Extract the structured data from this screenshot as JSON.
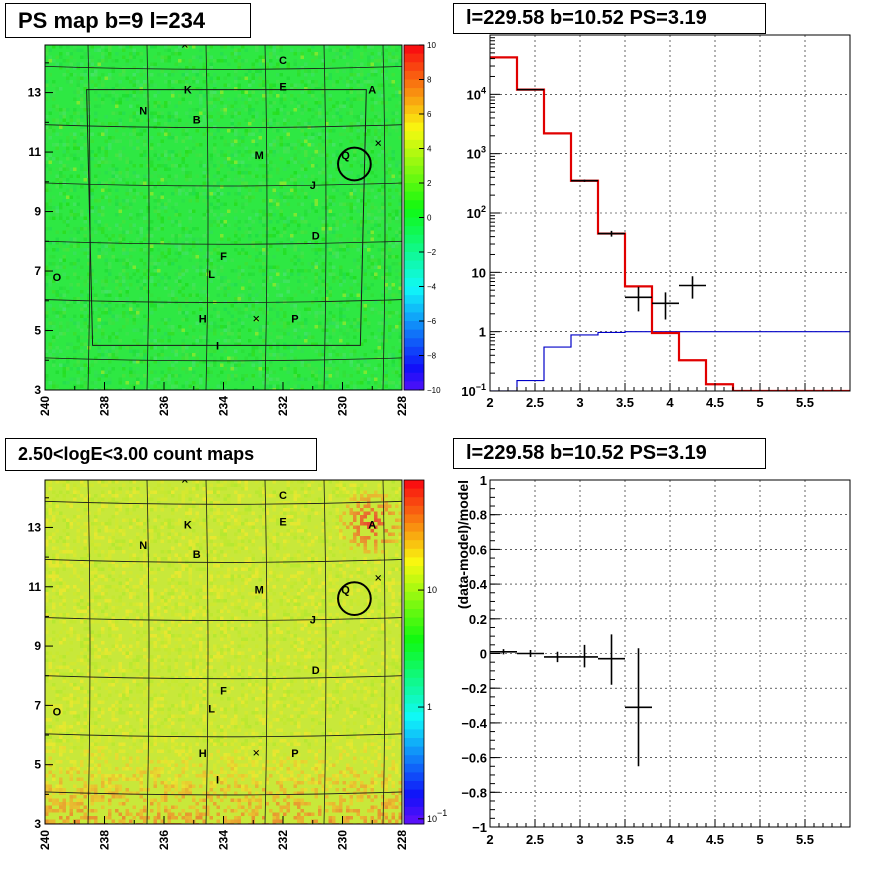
{
  "chart_data": [
    {
      "panel": "top-left",
      "type": "heatmap",
      "title": "PS map b=9 l=234",
      "xlim": [
        240,
        228
      ],
      "ylim": [
        3,
        14.6
      ],
      "x_ticks": [
        "240",
        "238",
        "236",
        "234",
        "232",
        "230",
        "228"
      ],
      "y_ticks": [
        "3",
        "5",
        "7",
        "9",
        "11",
        "13"
      ],
      "colorbar": {
        "scale": "linear",
        "range": [
          -10,
          10
        ],
        "ticks": [
          "10",
          "8",
          "6",
          "4",
          "2",
          "0",
          "−2",
          "−4",
          "−6",
          "−8",
          "−10"
        ]
      },
      "base_color": "#2ee843",
      "sources": [
        {
          "label": "C",
          "l": 232.0,
          "b": 14.1
        },
        {
          "label": "E",
          "l": 232.0,
          "b": 13.2
        },
        {
          "label": "A",
          "l": 229.0,
          "b": 13.1
        },
        {
          "label": "K",
          "l": 235.2,
          "b": 13.1
        },
        {
          "label": "N",
          "l": 236.7,
          "b": 12.4
        },
        {
          "label": "B",
          "l": 234.9,
          "b": 12.1
        },
        {
          "label": "M",
          "l": 232.8,
          "b": 10.9
        },
        {
          "label": "Q",
          "l": 229.9,
          "b": 10.9
        },
        {
          "label": "J",
          "l": 231.0,
          "b": 9.9
        },
        {
          "label": "D",
          "l": 230.9,
          "b": 8.2
        },
        {
          "label": "F",
          "l": 234.0,
          "b": 7.5
        },
        {
          "label": "O",
          "l": 239.6,
          "b": 6.8
        },
        {
          "label": "L",
          "l": 234.4,
          "b": 6.9
        },
        {
          "label": "H",
          "l": 234.7,
          "b": 5.4
        },
        {
          "label": "P",
          "l": 231.6,
          "b": 5.4
        },
        {
          "label": "I",
          "l": 234.2,
          "b": 4.5
        }
      ],
      "crosses": [
        {
          "l": 235.3,
          "b": 14.6
        },
        {
          "l": 228.8,
          "b": 11.3
        },
        {
          "l": 232.9,
          "b": 5.4
        }
      ],
      "circle": {
        "l": 229.6,
        "b": 10.6,
        "r_deg": 0.55
      },
      "hot_spot": null
    },
    {
      "panel": "top-right",
      "type": "line",
      "title": "l=229.58 b=10.52 PS=3.19",
      "xlim": [
        2,
        6
      ],
      "ylim": [
        0.1,
        100000
      ],
      "yscale": "log",
      "grid": true,
      "x_ticks": [
        "2",
        "2.5",
        "3",
        "3.5",
        "4",
        "4.5",
        "5",
        "5.5"
      ],
      "y_ticks": [
        {
          "value": 0.1,
          "base": "10",
          "exp": "−1"
        },
        {
          "value": 1,
          "base": "1",
          "exp": ""
        },
        {
          "value": 10,
          "base": "10",
          "exp": ""
        },
        {
          "value": 100,
          "base": "10",
          "exp": "2"
        },
        {
          "value": 1000,
          "base": "10",
          "exp": "3"
        },
        {
          "value": 10000,
          "base": "10",
          "exp": "4"
        }
      ],
      "bin_edges": [
        2.0,
        2.3,
        2.6,
        2.9,
        3.2,
        3.5,
        3.8,
        4.1,
        4.4,
        4.7,
        5.0,
        6.0
      ],
      "series": [
        {
          "style": "red-model",
          "color": "#e00000",
          "values": [
            42000,
            12000,
            2200,
            350,
            45,
            5.8,
            0.95,
            0.33,
            0.13,
            0.1,
            0.1
          ]
        },
        {
          "style": "blue-background",
          "color": "#0000c8",
          "values": [
            0.08,
            0.15,
            0.55,
            0.88,
            0.97,
            1.0,
            1.0,
            1.0,
            1.0,
            1.0,
            1.0
          ]
        }
      ],
      "points": [
        {
          "x": 2.45,
          "y": 12000,
          "xerr": 0.15,
          "ylo": 11800,
          "yhi": 12200
        },
        {
          "x": 3.05,
          "y": 350,
          "xerr": 0.15,
          "ylo": 335,
          "yhi": 365
        },
        {
          "x": 3.35,
          "y": 45,
          "xerr": 0.15,
          "ylo": 40,
          "yhi": 50
        },
        {
          "x": 3.65,
          "y": 3.8,
          "xerr": 0.15,
          "ylo": 2.2,
          "yhi": 5.7
        },
        {
          "x": 3.95,
          "y": 3.0,
          "xerr": 0.15,
          "ylo": 1.6,
          "yhi": 4.6
        },
        {
          "x": 4.25,
          "y": 6.0,
          "xerr": 0.15,
          "ylo": 3.6,
          "yhi": 8.6
        }
      ]
    },
    {
      "panel": "bottom-left",
      "type": "heatmap",
      "title": "2.50<logE<3.00 count maps",
      "xlim": [
        240,
        228
      ],
      "ylim": [
        3,
        14.6
      ],
      "x_ticks": [
        "240",
        "238",
        "236",
        "234",
        "232",
        "230",
        "228"
      ],
      "y_ticks": [
        "3",
        "5",
        "7",
        "9",
        "11",
        "13"
      ],
      "colorbar": {
        "scale": "log",
        "ticks": [
          {
            "base": "10",
            "exp": ""
          },
          {
            "base": "1",
            "exp": ""
          },
          {
            "base": "10",
            "exp": "−1"
          }
        ]
      },
      "base_color": "#c8e83a",
      "sources": [
        {
          "label": "C",
          "l": 232.0,
          "b": 14.1
        },
        {
          "label": "E",
          "l": 232.0,
          "b": 13.2
        },
        {
          "label": "A",
          "l": 229.0,
          "b": 13.1
        },
        {
          "label": "K",
          "l": 235.2,
          "b": 13.1
        },
        {
          "label": "N",
          "l": 236.7,
          "b": 12.4
        },
        {
          "label": "B",
          "l": 234.9,
          "b": 12.1
        },
        {
          "label": "M",
          "l": 232.8,
          "b": 10.9
        },
        {
          "label": "Q",
          "l": 229.9,
          "b": 10.9
        },
        {
          "label": "J",
          "l": 231.0,
          "b": 9.9
        },
        {
          "label": "D",
          "l": 230.9,
          "b": 8.2
        },
        {
          "label": "F",
          "l": 234.0,
          "b": 7.5
        },
        {
          "label": "O",
          "l": 239.6,
          "b": 6.8
        },
        {
          "label": "L",
          "l": 234.4,
          "b": 6.9
        },
        {
          "label": "H",
          "l": 234.7,
          "b": 5.4
        },
        {
          "label": "P",
          "l": 231.6,
          "b": 5.4
        },
        {
          "label": "I",
          "l": 234.2,
          "b": 4.5
        }
      ],
      "crosses": [
        {
          "l": 235.3,
          "b": 14.6
        },
        {
          "l": 228.8,
          "b": 11.3
        },
        {
          "l": 232.9,
          "b": 5.4
        }
      ],
      "circle": {
        "l": 229.6,
        "b": 10.6,
        "r_deg": 0.55
      },
      "hot_spot": {
        "l": 229.1,
        "b": 13.2
      }
    },
    {
      "panel": "bottom-right",
      "type": "scatter",
      "title": "l=229.58 b=10.52 PS=3.19",
      "ylabel": "(data-model)/model",
      "xlim": [
        2,
        6
      ],
      "ylim": [
        -1,
        1
      ],
      "grid": true,
      "x_ticks": [
        "2",
        "2.5",
        "3",
        "3.5",
        "4",
        "4.5",
        "5",
        "5.5"
      ],
      "y_ticks": [
        "1",
        "0.8",
        "0.6",
        "0.4",
        "0.2",
        "0",
        "−0.2",
        "−0.4",
        "−0.6",
        "−0.8",
        "−1"
      ],
      "points": [
        {
          "x": 2.15,
          "y": 0.01,
          "xerr": 0.15,
          "ylo": -0.005,
          "yhi": 0.025
        },
        {
          "x": 2.45,
          "y": 0.0,
          "xerr": 0.15,
          "ylo": -0.02,
          "yhi": 0.02
        },
        {
          "x": 2.75,
          "y": -0.02,
          "xerr": 0.15,
          "ylo": -0.05,
          "yhi": 0.01
        },
        {
          "x": 3.05,
          "y": -0.02,
          "xerr": 0.15,
          "ylo": -0.08,
          "yhi": 0.05
        },
        {
          "x": 3.35,
          "y": -0.03,
          "xerr": 0.15,
          "ylo": -0.18,
          "yhi": 0.11
        },
        {
          "x": 3.65,
          "y": -0.31,
          "xerr": 0.15,
          "ylo": -0.65,
          "yhi": 0.03
        }
      ]
    }
  ]
}
